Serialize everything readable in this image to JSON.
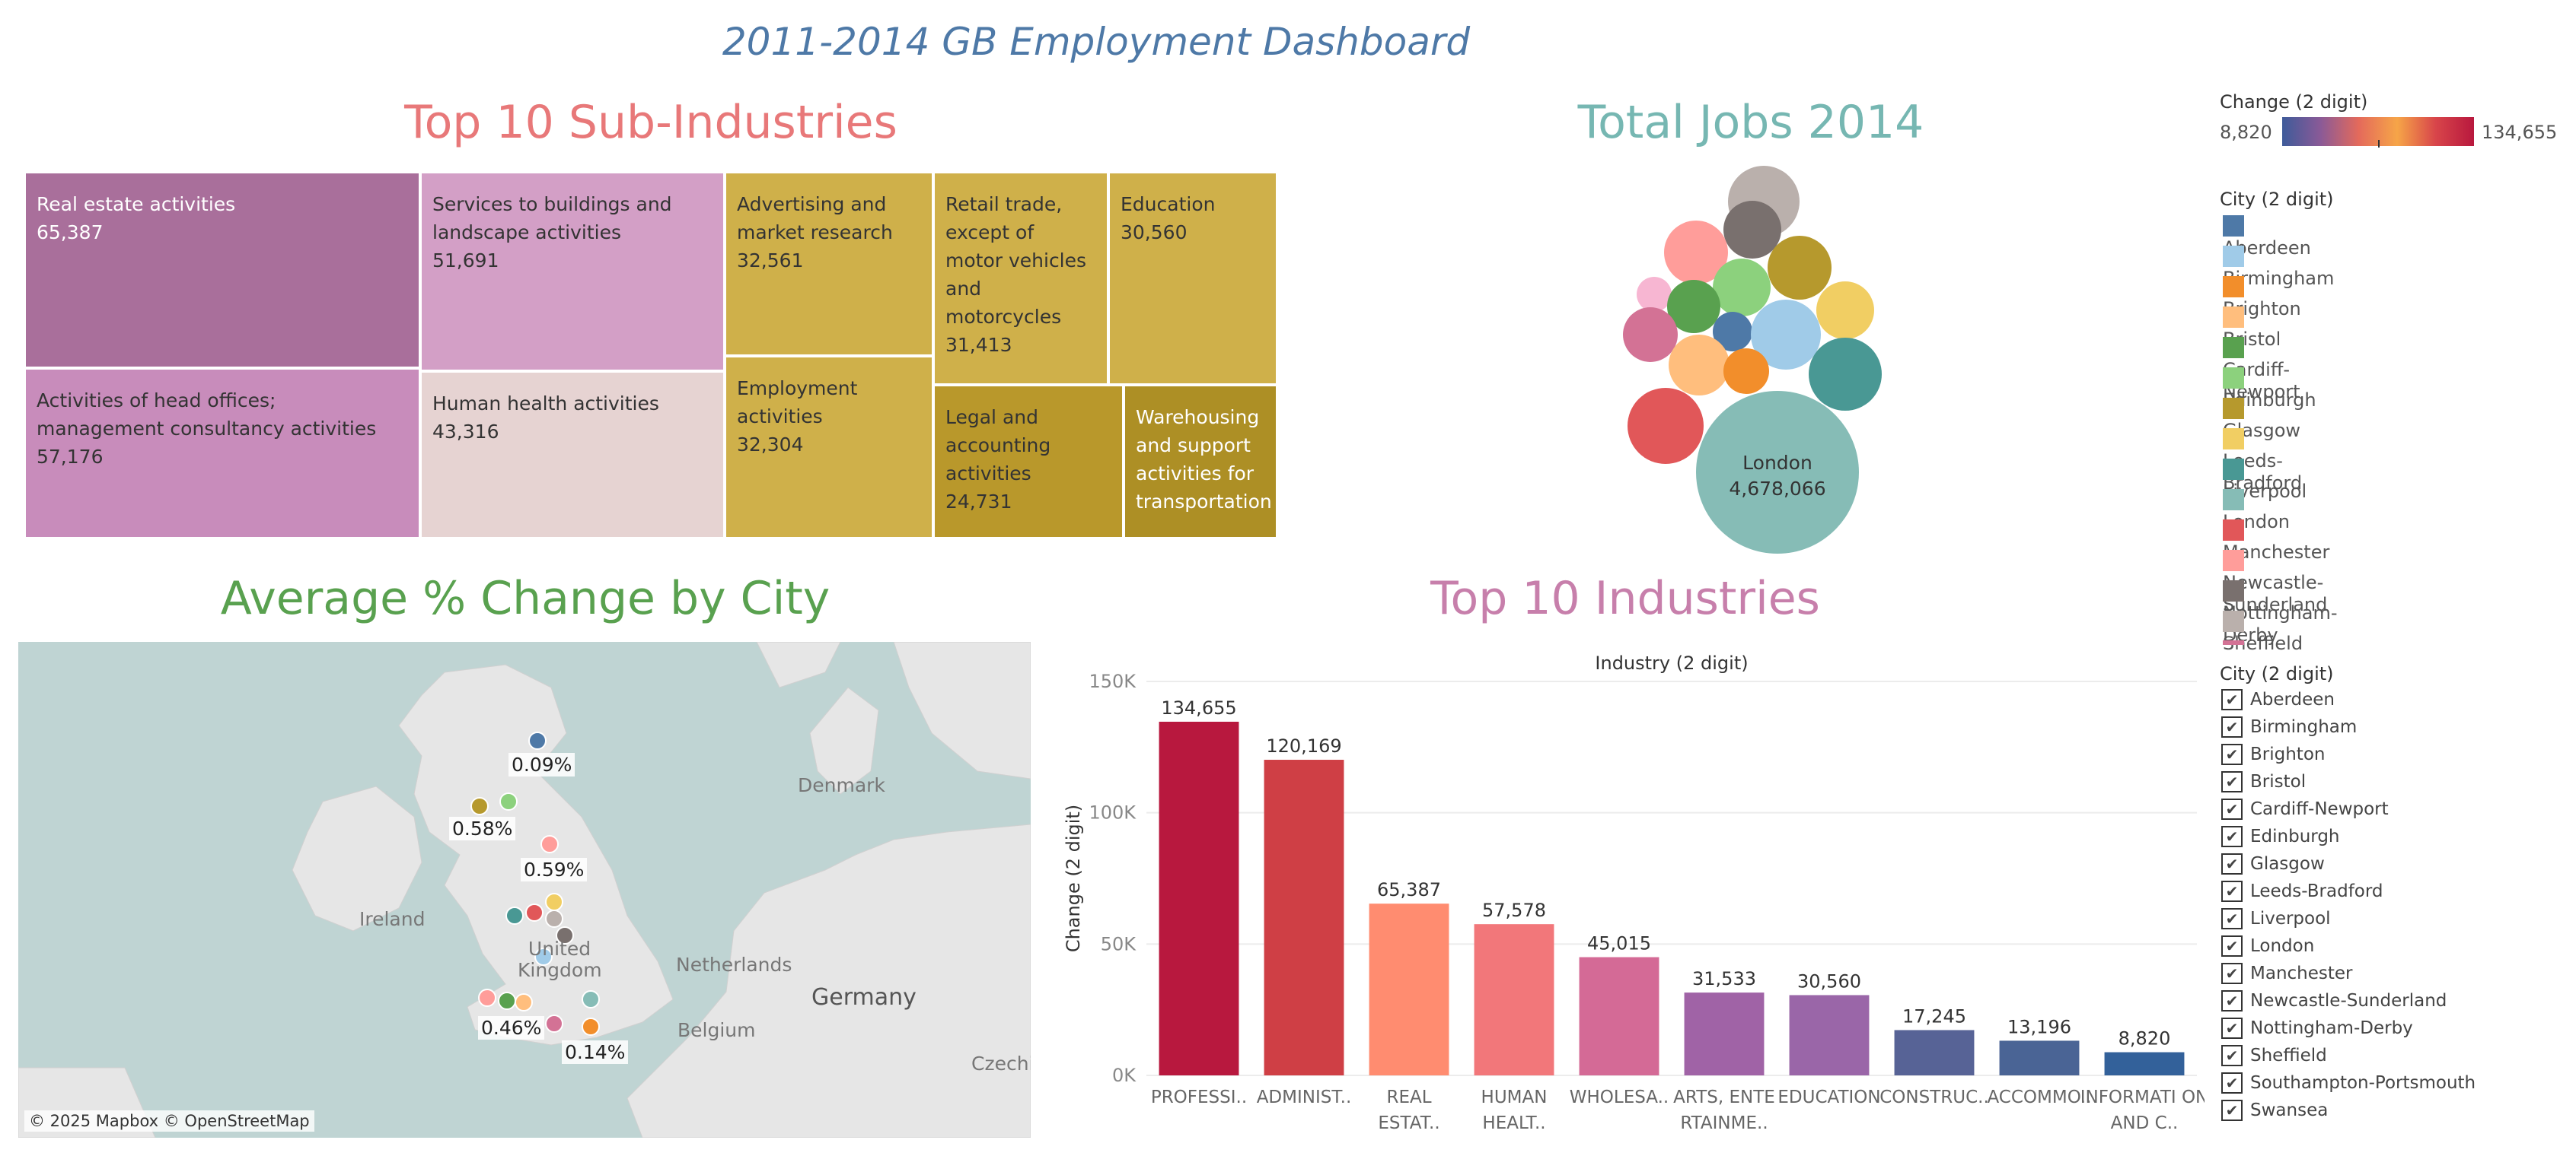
{
  "dashboard_title": "2011-2014 GB Employment Dashboard",
  "treemap": {
    "title": "Top 10 Sub-Industries",
    "title_color": "#e87879",
    "cells": [
      {
        "name": "Real estate activities",
        "value": "65,387",
        "color": "#a96f9b",
        "text_color": "#ffffff"
      },
      {
        "name": "Activities of head offices; management consultancy activities",
        "value": "57,176",
        "color": "#c88cbb",
        "text_color": "#333333"
      },
      {
        "name": "Services to buildings and landscape activities",
        "value": "51,691",
        "color": "#d39fc6",
        "text_color": "#333333"
      },
      {
        "name": "Human health activities",
        "value": "43,316",
        "color": "#e6d3d2",
        "text_color": "#333333"
      },
      {
        "name": "Advertising and market research",
        "value": "32,561",
        "color": "#cfb04a",
        "text_color": "#333333"
      },
      {
        "name": "Employment activities",
        "value": "32,304",
        "color": "#cfb04a",
        "text_color": "#333333"
      },
      {
        "name": "Retail trade, except of motor vehicles and motorcycles",
        "value": "31,413",
        "color": "#cfb04a",
        "text_color": "#333333"
      },
      {
        "name": "Education",
        "value": "30,560",
        "color": "#cfb04a",
        "text_color": "#333333"
      },
      {
        "name": "Legal and accounting activities",
        "value": "24,731",
        "color": "#b9982b",
        "text_color": "#333333"
      },
      {
        "name": "Warehousing and support activities for transportation",
        "value": "",
        "color": "#ad8f25",
        "text_color": "#ffffff"
      }
    ]
  },
  "bubbles": {
    "title": "Total Jobs 2014",
    "title_color": "#76b7b2",
    "london_label": "London",
    "london_value": "4,678,066"
  },
  "map": {
    "title": "Average % Change by City",
    "title_color": "#59a14f",
    "labels": [
      "0.09%",
      "0.58%",
      "0.59%",
      "0.46%",
      "0.14%"
    ],
    "places": [
      "Denmark",
      "Ireland",
      "United Kingdom",
      "Netherlands",
      "Belgium",
      "Germany",
      "Czechia"
    ],
    "attribution": "© 2025 Mapbox © OpenStreetMap"
  },
  "chart_data": {
    "type": "bar",
    "title": "Top 10 Industries",
    "title_color": "#c77fab",
    "header": "Industry (2 digit)",
    "ylabel": "Change (2 digit)",
    "ylim": [
      0,
      150000
    ],
    "yticks": [
      "0K",
      "50K",
      "100K",
      "150K"
    ],
    "categories": [
      "PROFESSI..",
      "ADMINIST..",
      "REAL ESTAT..",
      "HUMAN HEALT..",
      "WHOLESA..",
      "ARTS, ENTE RTAINME..",
      "EDUCATION",
      "CONSTRUC..",
      "ACCOMMO..",
      "INFORMATI ON AND C.."
    ],
    "values": [
      134655,
      120169,
      65387,
      57578,
      45015,
      31533,
      30560,
      17245,
      13196,
      8820
    ],
    "value_labels": [
      "134,655",
      "120,169",
      "65,387",
      "57,578",
      "45,015",
      "31,533",
      "30,560",
      "17,245",
      "13,196",
      "8,820"
    ],
    "colors": [
      "#b8183e",
      "#cf3f45",
      "#ff8c70",
      "#f2777a",
      "#d46a96",
      "#a063a6",
      "#9a66a8",
      "#576396",
      "#4a6495",
      "#33619a"
    ]
  },
  "color_legend": {
    "title": "Change (2 digit)",
    "min": "8,820",
    "max": "134,655"
  },
  "city_legend": {
    "title": "City (2 digit)",
    "items": [
      {
        "name": "Aberdeen",
        "color": "#4e79a7"
      },
      {
        "name": "Birmingham",
        "color": "#a0cbe8"
      },
      {
        "name": "Brighton",
        "color": "#f28e2b"
      },
      {
        "name": "Bristol",
        "color": "#ffbe7d"
      },
      {
        "name": "Cardiff-Newport",
        "color": "#59a14f"
      },
      {
        "name": "Edinburgh",
        "color": "#8cd17d"
      },
      {
        "name": "Glasgow",
        "color": "#b6992d"
      },
      {
        "name": "Leeds-Bradford",
        "color": "#f1ce63"
      },
      {
        "name": "Liverpool",
        "color": "#499894"
      },
      {
        "name": "London",
        "color": "#86bcb6"
      },
      {
        "name": "Manchester",
        "color": "#e15759"
      },
      {
        "name": "Newcastle-Sunderland",
        "color": "#ff9d9a"
      },
      {
        "name": "Nottingham-Derby",
        "color": "#79706e"
      },
      {
        "name": "Sheffield",
        "color": "#bab0ac"
      }
    ]
  },
  "city_filter": {
    "title": "City (2 digit)",
    "items": [
      "Aberdeen",
      "Birmingham",
      "Brighton",
      "Bristol",
      "Cardiff-Newport",
      "Edinburgh",
      "Glasgow",
      "Leeds-Bradford",
      "Liverpool",
      "London",
      "Manchester",
      "Newcastle-Sunderland",
      "Nottingham-Derby",
      "Sheffield",
      "Southampton-Portsmouth",
      "Swansea"
    ],
    "check_glyph": "✔"
  }
}
